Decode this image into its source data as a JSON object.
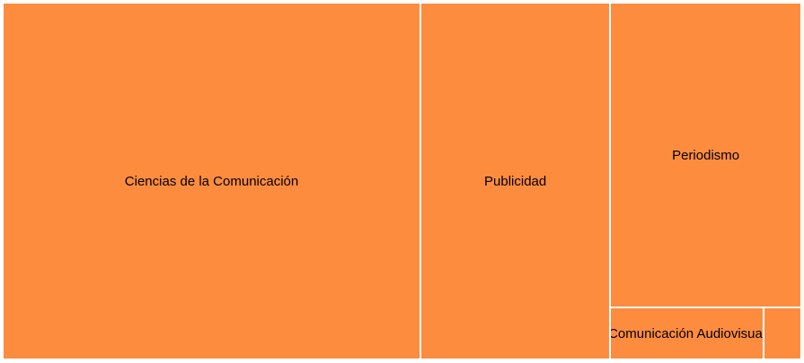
{
  "chart_data": {
    "type": "treemap",
    "title": "",
    "colors": {
      "fill": "#fe8c3f",
      "border": "#ffffff"
    },
    "items": [
      {
        "label": "Ciencias de la Comunicación",
        "value": 207
      },
      {
        "label": "Publicidad",
        "value": 94
      },
      {
        "label": "Periodismo",
        "value": 81
      },
      {
        "label": "Comunicación Audiovisual",
        "value": 11
      },
      {
        "label": "",
        "value": 2.7
      }
    ]
  }
}
